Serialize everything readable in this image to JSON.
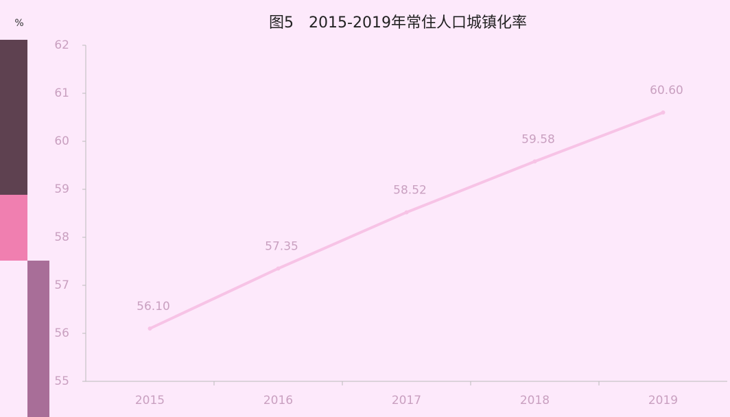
{
  "chart_data": {
    "type": "line",
    "title": "图5　2015-2019年常住人口城镇化率",
    "y_label": "%",
    "categories": [
      "2015",
      "2016",
      "2017",
      "2018",
      "2019"
    ],
    "series": [
      {
        "name": "常住人口城镇化率",
        "color": "#f7c3e6",
        "values": [
          56.1,
          57.35,
          58.52,
          59.58,
          60.6
        ],
        "value_labels": [
          "56.10",
          "57.35",
          "58.52",
          "59.58",
          "60.60"
        ]
      }
    ],
    "ylim": [
      55,
      62
    ],
    "yticks": [
      55,
      56,
      57,
      58,
      59,
      60,
      61,
      62
    ],
    "grid": false
  }
}
